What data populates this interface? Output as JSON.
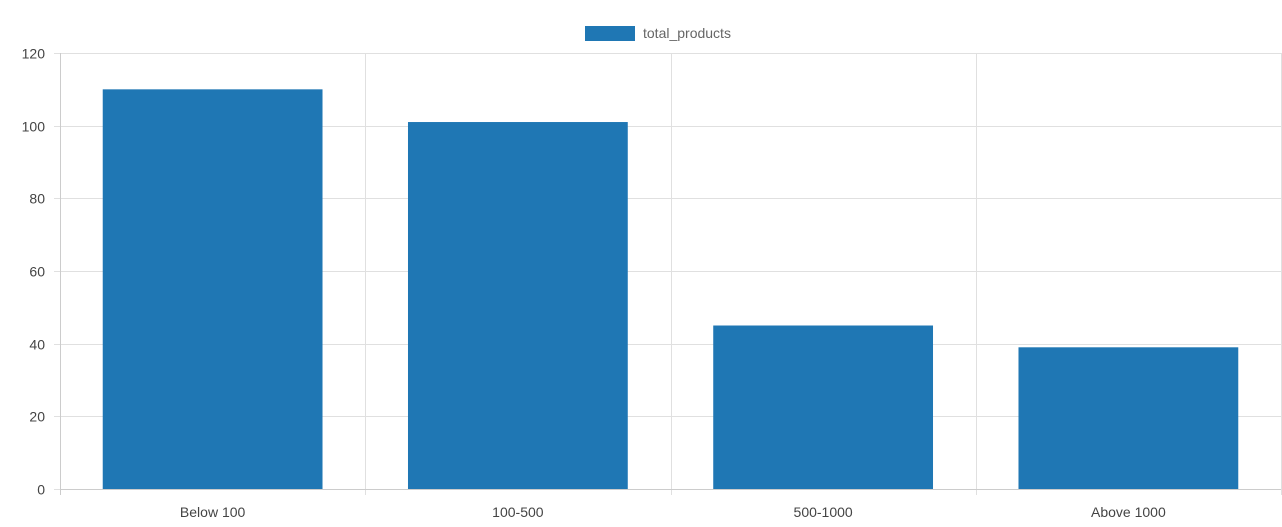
{
  "chart_data": {
    "type": "bar",
    "categories": [
      "Below 100",
      "100-500",
      "500-1000",
      "Above 1000"
    ],
    "series": [
      {
        "name": "total_products",
        "values": [
          110,
          101,
          45,
          39
        ],
        "color": "#1f77b4"
      }
    ],
    "ylim": [
      0,
      120
    ],
    "yticks": [
      0,
      20,
      40,
      60,
      80,
      100,
      120
    ],
    "grid": true,
    "legend_position": "top-center",
    "colors": {
      "grid": "#e0e0e0",
      "axis": "#cccccc",
      "tick_text": "#444444",
      "legend_text": "#666666"
    }
  }
}
